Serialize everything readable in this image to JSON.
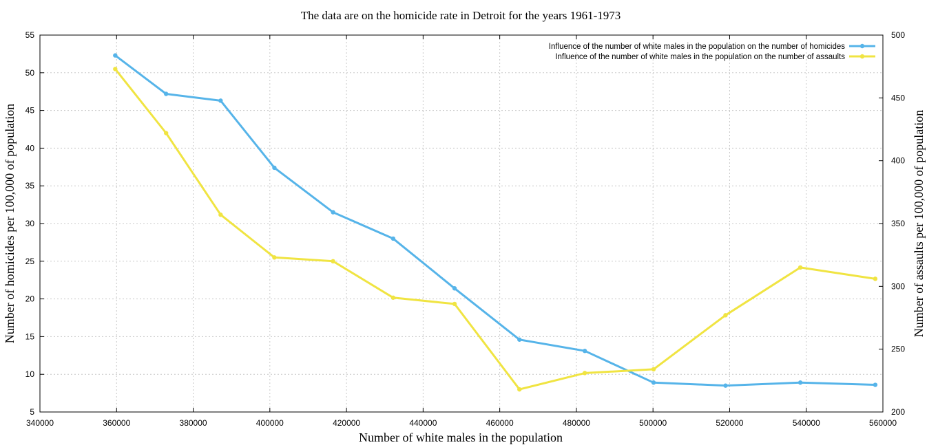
{
  "chart_data": {
    "type": "line",
    "title": "The data are on the homicide rate in Detroit for the years 1961-1973",
    "xlabel": "Number of white males in the population",
    "ylabel": "Number of homicides per 100,000 of population",
    "y2label": "Number of assaults per 100,000 of population",
    "xlim": [
      340000,
      560000
    ],
    "ylim": [
      5,
      55
    ],
    "y2lim": [
      200,
      500
    ],
    "x_ticks": [
      340000,
      360000,
      380000,
      400000,
      420000,
      440000,
      460000,
      480000,
      500000,
      520000,
      540000,
      560000
    ],
    "y_ticks": [
      5,
      10,
      15,
      20,
      25,
      30,
      35,
      40,
      45,
      50,
      55
    ],
    "y2_ticks": [
      200,
      250,
      300,
      350,
      400,
      450,
      500
    ],
    "grid": true,
    "legend_position": "top-right",
    "x": [
      359647,
      372923,
      387157,
      401185,
      416493,
      432180,
      448213,
      465143,
      482201,
      500154,
      518923,
      538448,
      558006
    ],
    "series": [
      {
        "name": "Influence of the number of white males in the population on the number of homicides",
        "axis": "left",
        "color": "#56b4e9",
        "values": [
          52.3,
          47.2,
          46.3,
          37.4,
          31.5,
          28.0,
          21.4,
          14.6,
          13.1,
          8.9,
          8.5,
          8.9,
          8.6
        ]
      },
      {
        "name": "Influence of the number of white males in the population on the number of assaults",
        "axis": "right",
        "color": "#f0e442",
        "values": [
          473,
          422,
          357,
          323,
          320,
          291,
          286,
          218,
          231,
          234,
          277,
          315,
          306
        ]
      }
    ]
  }
}
